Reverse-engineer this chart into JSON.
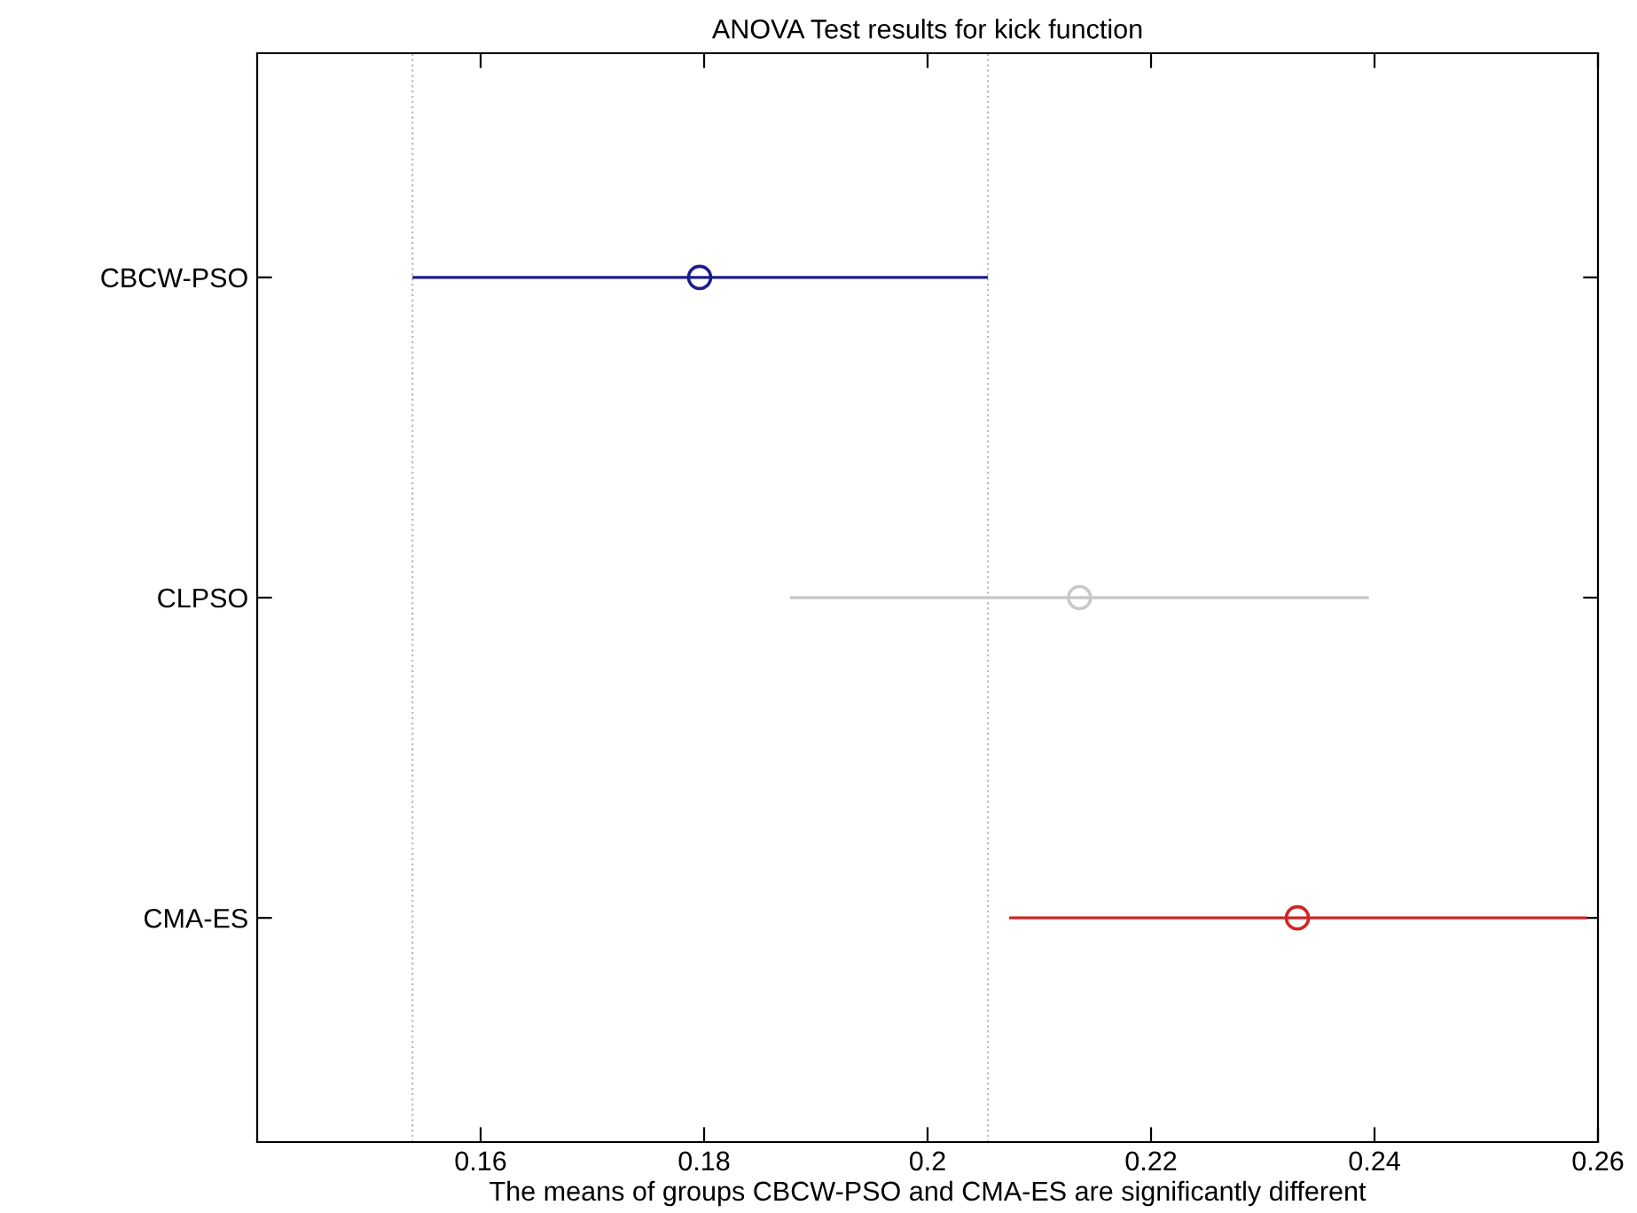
{
  "chart_data": {
    "type": "scatter",
    "orientation": "horizontal",
    "title": "ANOVA Test results for kick function",
    "xlabel": "The means of groups CBCW-PSO and CMA-ES are significantly different",
    "categories": [
      "CBCW-PSO",
      "CLPSO",
      "CMA-ES"
    ],
    "values": [
      0.1796,
      0.2136,
      0.2331
    ],
    "errors": [
      [
        0.1539,
        0.2054
      ],
      [
        0.1877,
        0.2395
      ],
      [
        0.2073,
        0.259
      ]
    ],
    "colors": [
      "#1c1c8e",
      "#c8c8c8",
      "#d02424"
    ],
    "marker": "circle",
    "xlim": [
      0.14,
      0.26
    ],
    "xticks": [
      0.16,
      0.18,
      0.2,
      0.22,
      0.24,
      0.26
    ],
    "ref_lines": [
      {
        "axis": "x",
        "value": 0.1539,
        "color": "#bbbbbb",
        "line_style": "dotted"
      },
      {
        "axis": "x",
        "value": 0.2054,
        "color": "#bbbbbb",
        "line_style": "dotted"
      }
    ],
    "grid": false,
    "legend": false
  }
}
